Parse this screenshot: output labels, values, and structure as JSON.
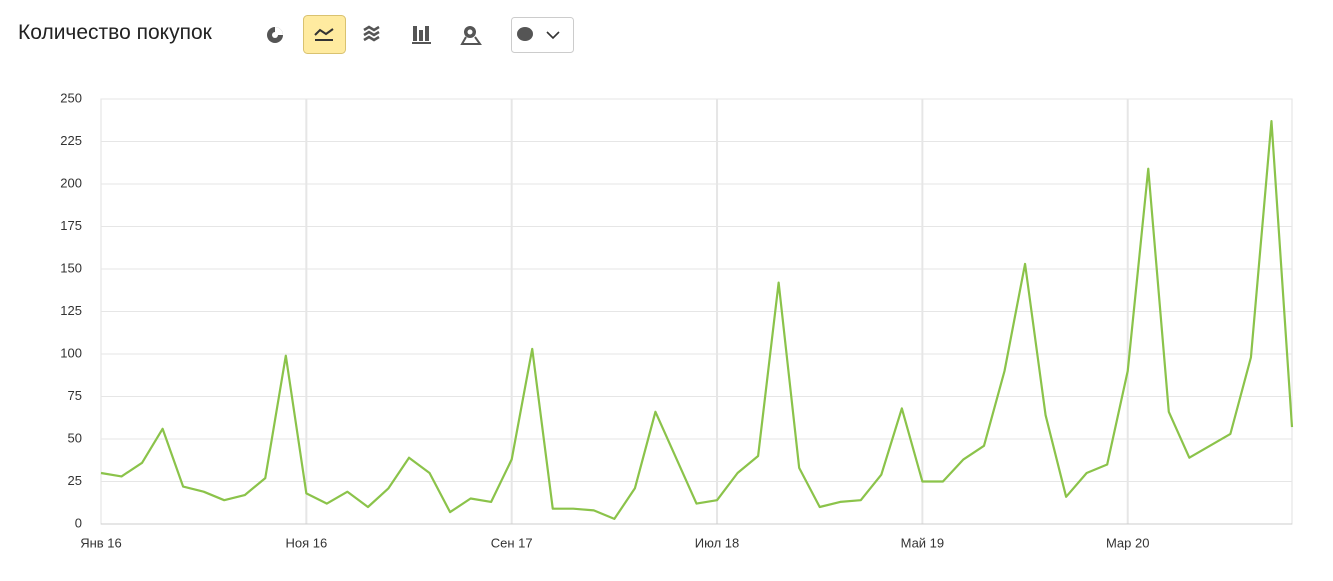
{
  "header": {
    "title": "Количество покупок"
  },
  "chart_data": {
    "type": "line",
    "categories": [
      "Янв 16",
      null,
      null,
      null,
      null,
      null,
      null,
      null,
      null,
      null,
      "Ноя 16",
      null,
      null,
      null,
      null,
      null,
      null,
      null,
      null,
      null,
      "Сен 17",
      null,
      null,
      null,
      null,
      null,
      null,
      null,
      null,
      null,
      "Июл 18",
      null,
      null,
      null,
      null,
      null,
      null,
      null,
      null,
      null,
      "Май 19",
      null,
      null,
      null,
      null,
      null,
      null,
      null,
      null,
      null,
      "Мар 20",
      null,
      null,
      null,
      null,
      null,
      null,
      null,
      null
    ],
    "series": [
      {
        "color": "#8bc34a",
        "values": [
          30,
          28,
          36,
          56,
          22,
          19,
          14,
          17,
          27,
          99,
          18,
          12,
          19,
          10,
          21,
          39,
          30,
          7,
          15,
          13,
          38,
          103,
          9,
          9,
          8,
          3,
          21,
          66,
          39,
          12,
          14,
          30,
          40,
          142,
          33,
          10,
          13,
          14,
          29,
          68,
          25,
          25,
          38,
          46,
          90,
          153,
          64,
          16,
          30,
          35,
          90,
          209,
          66,
          39,
          46,
          53,
          98,
          237,
          57
        ]
      }
    ],
    "ylim": [
      0,
      250
    ],
    "yticks": [
      0,
      25,
      50,
      75,
      100,
      125,
      150,
      175,
      200,
      225,
      250
    ],
    "grid": true
  }
}
